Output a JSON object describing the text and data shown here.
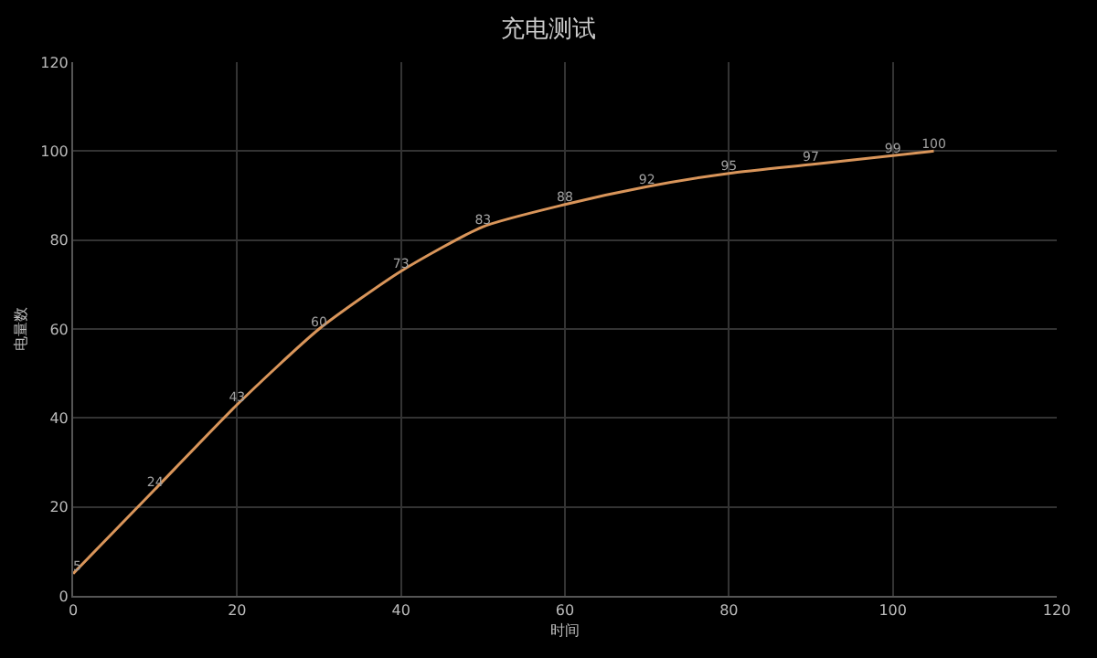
{
  "chart_data": {
    "type": "line",
    "title": "充电测试",
    "xlabel": "时间",
    "ylabel": "电量数",
    "x": [
      0,
      10,
      20,
      30,
      40,
      50,
      60,
      70,
      80,
      90,
      100,
      105
    ],
    "series": [
      {
        "color": "#d9955a",
        "values": [
          5,
          24,
          43,
          60,
          73,
          83,
          88,
          92,
          95,
          97,
          99,
          100
        ]
      }
    ],
    "xlim": [
      0,
      120
    ],
    "xticks": [
      0,
      20,
      40,
      60,
      80,
      100,
      120
    ],
    "ylim": [
      0,
      120
    ],
    "yticks": [
      0,
      20,
      40,
      60,
      80,
      100,
      120
    ],
    "grid": true,
    "legend": false,
    "marker": "none",
    "line_style": "solid",
    "data_labels": true
  }
}
